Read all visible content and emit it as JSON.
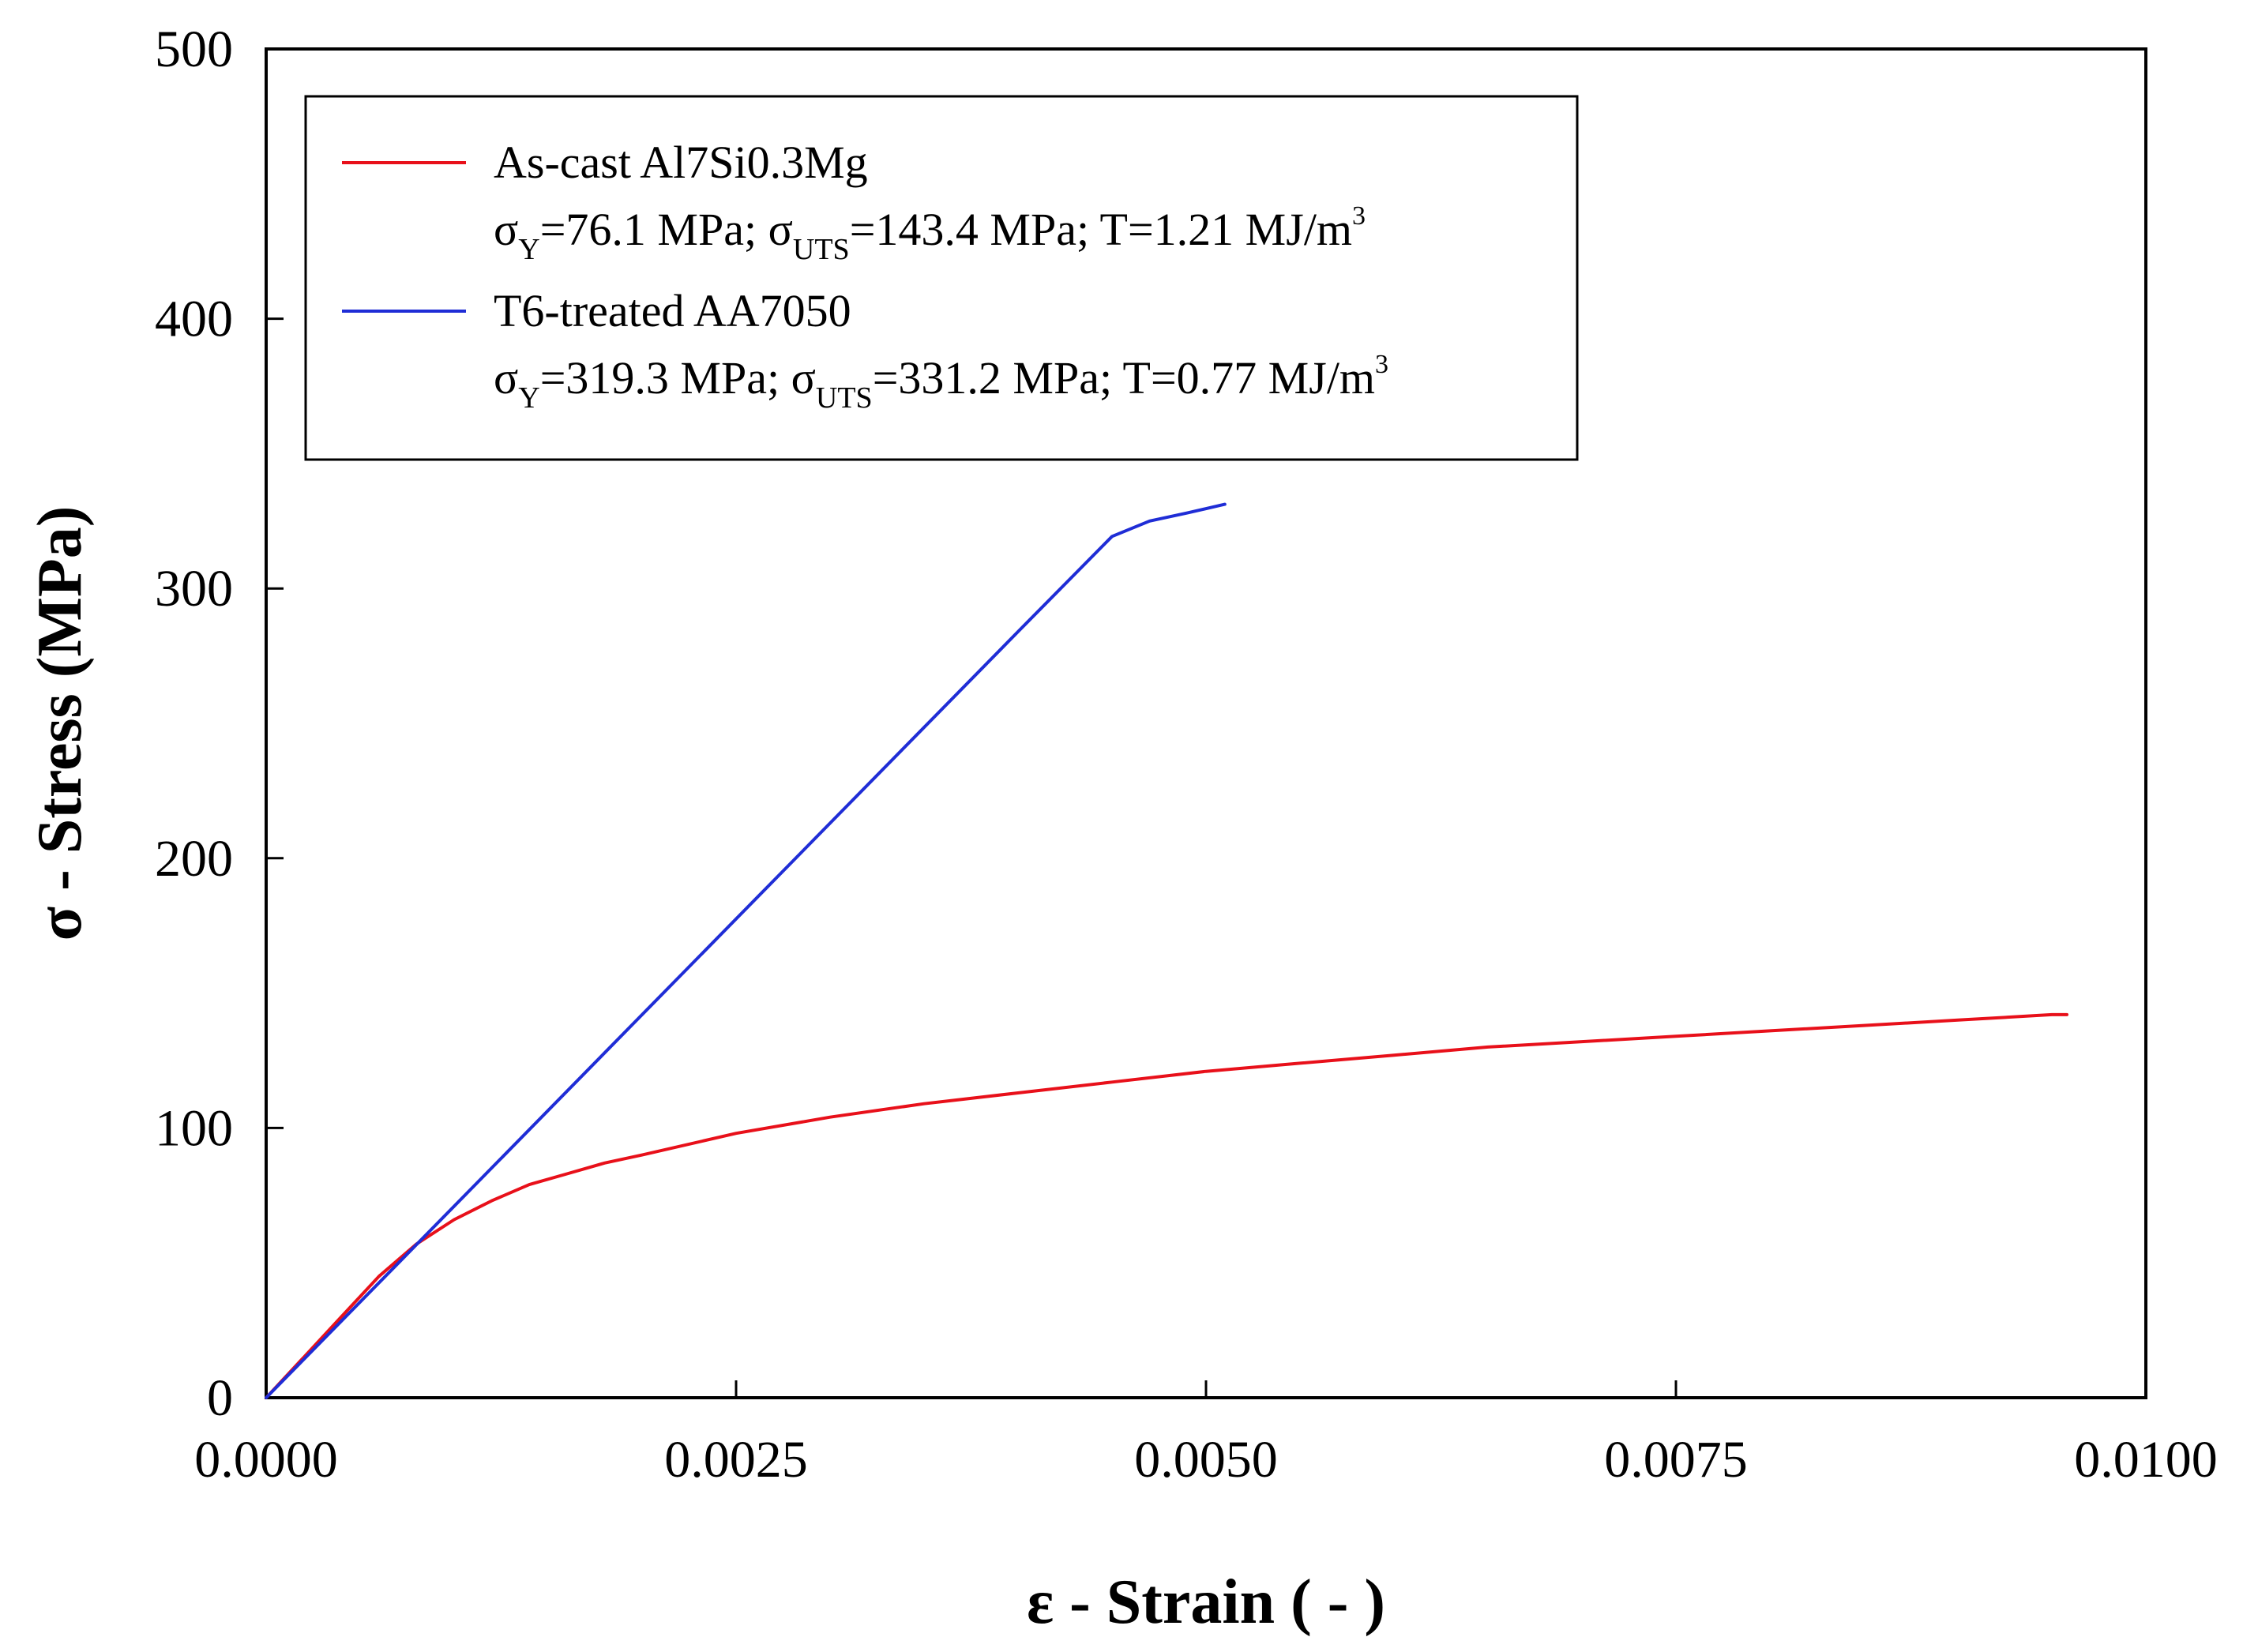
{
  "chart_data": {
    "type": "line",
    "title": "",
    "xlabel": "ε - Strain ( - )",
    "ylabel": "σ - Stress (MPa)",
    "xlim": [
      0,
      0.01
    ],
    "ylim": [
      0,
      500
    ],
    "xticks": [
      0,
      0.0025,
      0.005,
      0.0075,
      0.01
    ],
    "xtick_labels": [
      "0.0000",
      "0.0025",
      "0.0050",
      "0.0075",
      "0.0100"
    ],
    "yticks": [
      0,
      100,
      200,
      300,
      400,
      500
    ],
    "ytick_labels": [
      "0",
      "100",
      "200",
      "300",
      "400",
      "500"
    ],
    "grid": false,
    "legend_position": "top-left",
    "series": [
      {
        "name": "As-cast Al7Si0.3Mg",
        "color": "#e8101a",
        "legend_line2": {
          "sy_val": "=76.1 MPa; ",
          "suts_val": "=143.4 MPa; T=1.21 MJ/m",
          "sup": "3"
        },
        "x": [
          0,
          0.0002,
          0.0004,
          0.0006,
          0.0008,
          0.001,
          0.0012,
          0.0014,
          0.0016,
          0.0018,
          0.002,
          0.0025,
          0.003,
          0.0035,
          0.004,
          0.0045,
          0.005,
          0.0055,
          0.006,
          0.0065,
          0.007,
          0.0075,
          0.008,
          0.0085,
          0.009,
          0.0095,
          0.00958
        ],
        "y": [
          0,
          15,
          30,
          45,
          57,
          66,
          73,
          79,
          83,
          87,
          90,
          98,
          104,
          109,
          113,
          117,
          121,
          124,
          127,
          130,
          132,
          134,
          136,
          138,
          140,
          142,
          142
        ]
      },
      {
        "name": "T6-treated AA7050",
        "color": "#1f2dd6",
        "legend_line2": {
          "sy_val": "=319.3 MPa; ",
          "suts_val": "=331.2 MPa; T=0.77 MJ/m",
          "sup": "3"
        },
        "x": [
          0,
          0.001,
          0.002,
          0.003,
          0.004,
          0.0045,
          0.0047,
          0.0049,
          0.0051
        ],
        "y": [
          0,
          71,
          142,
          213,
          284,
          319.3,
          325,
          328,
          331.2
        ]
      }
    ]
  },
  "legend_symbols": {
    "sigma": "σ",
    "sub_y": "Y",
    "sub_uts": "UTS"
  }
}
